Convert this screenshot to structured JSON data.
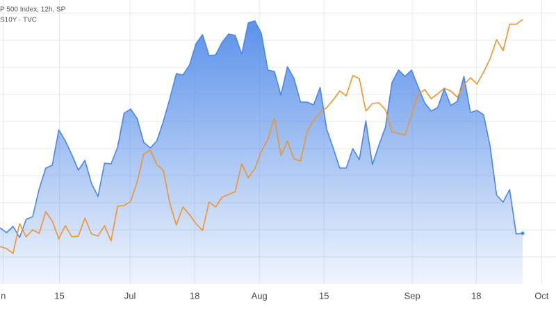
{
  "chart_data": {
    "type": "line",
    "x": [
      0,
      1,
      2,
      3,
      4,
      5,
      6,
      7,
      8,
      9,
      10,
      11,
      12,
      13,
      14,
      15,
      16,
      17,
      18,
      19,
      20,
      21,
      22,
      23,
      24,
      25,
      26,
      27,
      28,
      29,
      30,
      31,
      32,
      33,
      34,
      35,
      36,
      37,
      38,
      39,
      40,
      41,
      42,
      43,
      44,
      45,
      46,
      47,
      48,
      49,
      50,
      51,
      52,
      53,
      54,
      55,
      56,
      57,
      58,
      59,
      60,
      61,
      62,
      63,
      64,
      65,
      66,
      67,
      68,
      69,
      70,
      71,
      72,
      73,
      74,
      75,
      76,
      77,
      78,
      79,
      80
    ],
    "series": [
      {
        "name": "P 500 Index, 12h, SP",
        "color": "#4a86e8",
        "area": true,
        "values": [
          81,
          74,
          83,
          67,
          93,
          97,
          137,
          167,
          171,
          222,
          206,
          186,
          164,
          178,
          145,
          126,
          174,
          173,
          197,
          246,
          252,
          238,
          204,
          196,
          206,
          234,
          267,
          303,
          301,
          315,
          346,
          359,
          329,
          330,
          348,
          360,
          358,
          331,
          376,
          379,
          361,
          308,
          306,
          272,
          313,
          296,
          262,
          262,
          258,
          283,
          223,
          196,
          167,
          167,
          195,
          179,
          235,
          172,
          200,
          226,
          290,
          308,
          299,
          308,
          284,
          261,
          249,
          254,
          281,
          257,
          263,
          299,
          247,
          250,
          244,
          199,
          128,
          118,
          136,
          72,
          73
        ]
      },
      {
        "name": "S10Y · TVC",
        "color": "#f0932b",
        "area": false,
        "values": [
          54,
          51,
          44,
          87,
          68,
          78,
          73,
          104,
          91,
          65,
          84,
          68,
          69,
          95,
          72,
          69,
          84,
          62,
          112,
          113,
          119,
          147,
          187,
          193,
          172,
          164,
          116,
          85,
          111,
          100,
          87,
          77,
          118,
          111,
          125,
          129,
          133,
          173,
          153,
          166,
          191,
          208,
          239,
          185,
          206,
          180,
          177,
          219,
          236,
          247,
          254,
          265,
          278,
          271,
          300,
          296,
          249,
          260,
          261,
          251,
          219,
          217,
          214,
          244,
          273,
          280,
          267,
          274,
          282,
          278,
          269,
          287,
          297,
          288,
          305,
          324,
          352,
          336,
          374,
          374,
          381
        ]
      }
    ],
    "xlim": [
      0,
      85.1
    ],
    "xticks": [
      {
        "value": 0.5,
        "label": "n"
      },
      {
        "value": 9.1,
        "label": "15"
      },
      {
        "value": 19.9,
        "label": "Jul"
      },
      {
        "value": 29.8,
        "label": "18"
      },
      {
        "value": 39.7,
        "label": "Aug"
      },
      {
        "value": 49.6,
        "label": "15"
      },
      {
        "value": 63.1,
        "label": "Sep"
      },
      {
        "value": 72.9,
        "label": "18"
      },
      {
        "value": 82.9,
        "label": "Oct"
      }
    ],
    "ylim": [
      0,
      409
    ],
    "yticks": [
      39,
      78,
      117,
      156,
      195,
      234,
      273,
      312,
      351,
      390
    ],
    "grid": true
  }
}
